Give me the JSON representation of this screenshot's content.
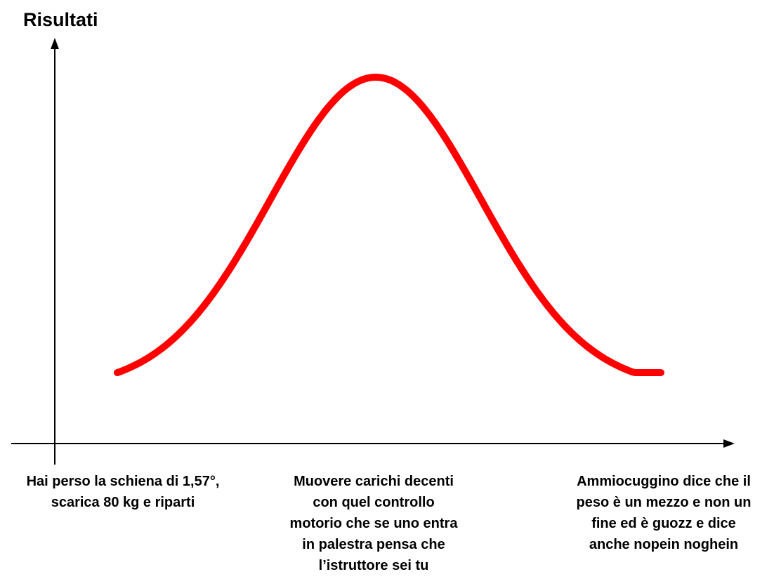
{
  "diagram": {
    "y_axis_label": "Risultati",
    "curve_color": "#ff0000",
    "axis_color": "#000000",
    "captions": {
      "left": "Hai perso la schiena di 1,57°,\nscarica 80 kg e riparti",
      "center": "Muovere carichi decenti\ncon quel controllo\nmotorio che se uno entra\nin palestra pensa che\nl’istruttore sei tu",
      "right": "Ammiocuggino dice che il\npeso è un mezzo e non un\nfine ed è guozz e dice\nanche nopein noghein"
    }
  }
}
